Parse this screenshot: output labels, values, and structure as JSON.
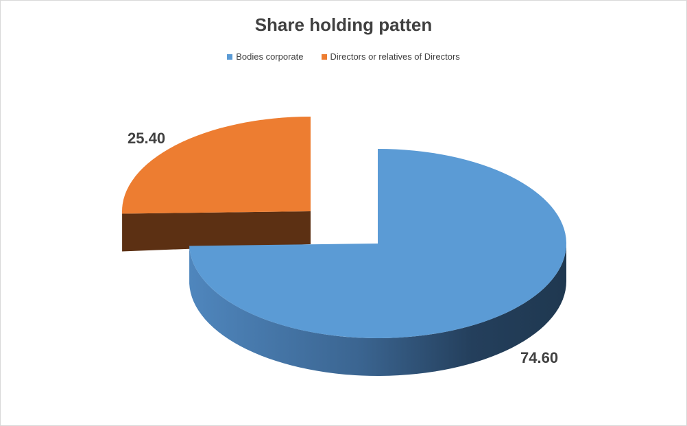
{
  "chart_data": {
    "type": "pie",
    "title": "Share holding patten",
    "categories": [
      "Bodies corporate",
      "Directors or relatives of Directors"
    ],
    "values": [
      74.6,
      25.4
    ],
    "data_labels": [
      "74.60",
      "25.40"
    ],
    "colors": [
      "#5b9bd5",
      "#ed7d31"
    ],
    "side_colors": [
      "#2f5a85",
      "#5c3013"
    ],
    "style": "3d exploded",
    "legend_position": "top"
  }
}
